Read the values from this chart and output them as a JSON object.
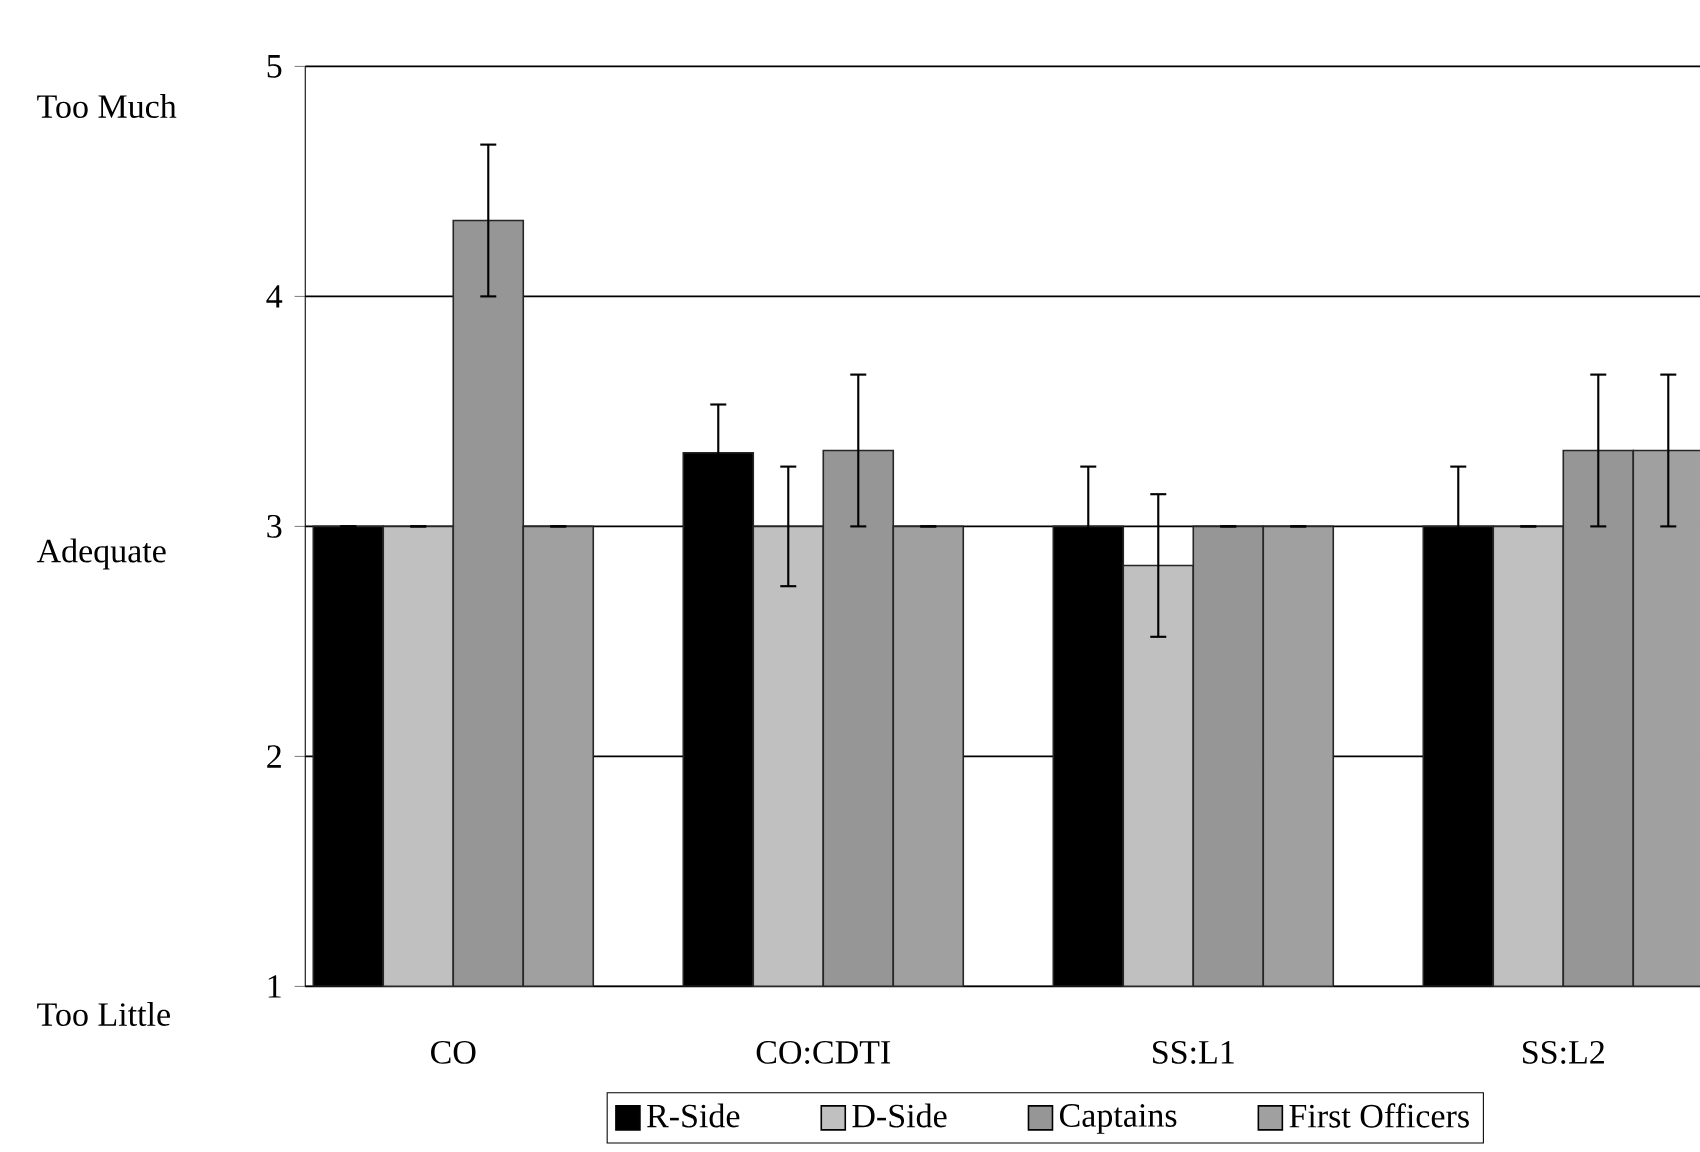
{
  "chart_data": {
    "type": "bar",
    "categories": [
      "CO",
      "CO:CDTI",
      "SS:L1",
      "SS:L2"
    ],
    "series": [
      {
        "name": "R-Side",
        "color": "#000000",
        "values": [
          3,
          3.32,
          3,
          3
        ],
        "errors": [
          0,
          0.21,
          0.26,
          0.26
        ]
      },
      {
        "name": "D-Side",
        "color": "#c0c0c0",
        "values": [
          3,
          3,
          2.83,
          3
        ],
        "errors": [
          0,
          0.26,
          0.31,
          0
        ]
      },
      {
        "name": "Captains",
        "color": "#969696",
        "values": [
          4.33,
          3.33,
          3,
          3.33
        ],
        "errors": [
          0.33,
          0.33,
          0,
          0.33
        ]
      },
      {
        "name": "First Officers",
        "color": "#a0a0a0",
        "values": [
          3,
          3,
          3,
          3.33
        ],
        "errors": [
          0,
          0,
          0,
          0.33
        ]
      }
    ],
    "ylim": [
      1,
      5
    ],
    "yticks": [
      1,
      2,
      3,
      4,
      5
    ],
    "annotations": [
      "Too Much",
      "Adequate",
      "Too Little"
    ],
    "grid": "y",
    "legend": "bottom"
  }
}
